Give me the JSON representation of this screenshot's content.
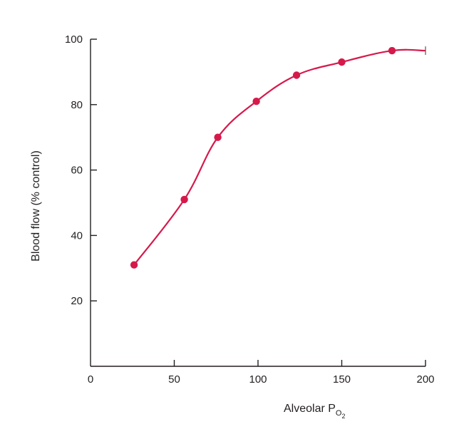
{
  "chart_data": {
    "type": "line",
    "title": "",
    "xlabel": {
      "main": "Alveolar P",
      "sub": "O",
      "subsub": "2"
    },
    "ylabel": "Blood flow (% control)",
    "xlim": [
      0,
      200
    ],
    "ylim": [
      0,
      100
    ],
    "x_ticks": [
      0,
      50,
      100,
      150,
      200
    ],
    "y_ticks": [
      20,
      40,
      60,
      80,
      100
    ],
    "grid": false,
    "series": [
      {
        "x": [
          26,
          56,
          76,
          99,
          123,
          150,
          180,
          200
        ],
        "y": [
          31,
          51,
          70,
          81,
          89,
          93,
          96.5,
          96.5
        ],
        "markers": [
          true,
          true,
          true,
          true,
          true,
          true,
          true,
          false
        ],
        "color": "#d6194b"
      }
    ]
  }
}
